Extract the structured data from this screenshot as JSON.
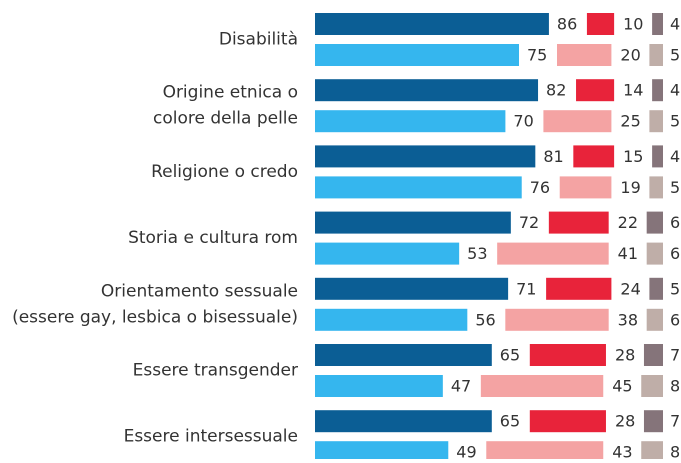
{
  "chart_data": {
    "type": "bar",
    "orientation": "horizontal",
    "categories": [
      [
        "Disabilità"
      ],
      [
        "Origine etnica o",
        "colore della pelle"
      ],
      [
        "Religione o credo"
      ],
      [
        "Storia e cultura rom"
      ],
      [
        "Orientamento sessuale",
        "(essere gay, lesbica o bisessuale)"
      ],
      [
        "Essere transgender"
      ],
      [
        "Essere intersessuale"
      ]
    ],
    "series": [
      {
        "color": "#0b5e95",
        "values": [
          86,
          82,
          81,
          72,
          71,
          65,
          65
        ]
      },
      {
        "color": "#e8233a",
        "values": [
          10,
          14,
          15,
          22,
          24,
          28,
          28
        ]
      },
      {
        "color": "#85747a",
        "values": [
          4,
          4,
          4,
          6,
          5,
          7,
          7
        ]
      },
      {
        "color": "#35b6ee",
        "values": [
          75,
          70,
          76,
          53,
          56,
          47,
          49
        ]
      },
      {
        "color": "#f4a3a3",
        "values": [
          20,
          25,
          19,
          41,
          38,
          45,
          43
        ]
      },
      {
        "color": "#bfaea8",
        "values": [
          5,
          5,
          5,
          6,
          6,
          8,
          8
        ]
      }
    ]
  }
}
